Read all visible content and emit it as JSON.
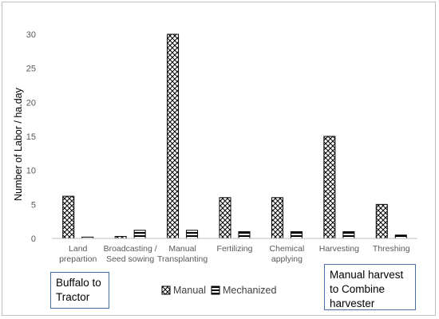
{
  "chart_data": {
    "type": "bar",
    "title": "",
    "xlabel": "",
    "ylabel": "Number of Labor / ha.day",
    "ylim": [
      0,
      30
    ],
    "yticks": [
      0,
      5,
      10,
      15,
      20,
      25,
      30
    ],
    "grid": false,
    "legend_position": "bottom",
    "categories": [
      [
        "Land",
        "prepartion"
      ],
      [
        "Broadcasting /",
        "Seed sowing"
      ],
      [
        "Manual",
        "Transplanting"
      ],
      [
        "Fertilizing"
      ],
      [
        "Chemical",
        "applying"
      ],
      [
        "Harvesting"
      ],
      [
        "Threshing"
      ]
    ],
    "series": [
      {
        "name": "Manual",
        "values": [
          6.2,
          0.3,
          30,
          6,
          6,
          15,
          5
        ],
        "pattern": "crosshatch"
      },
      {
        "name": "Mechanized",
        "values": [
          0.2,
          1.2,
          1.2,
          1,
          1,
          1,
          0.5
        ],
        "pattern": "horizontal-stripes"
      }
    ],
    "annotations": [
      {
        "lines": [
          "Buffalo to",
          "Tractor"
        ]
      },
      {
        "lines": [
          "Manual harvest",
          "to Combine",
          "harvester"
        ]
      }
    ],
    "colors": {
      "bar_fill": "#ffffff",
      "bar_stroke": "#000000",
      "axis": "#bfbfbf",
      "note_border": "#4a6fa5"
    }
  }
}
